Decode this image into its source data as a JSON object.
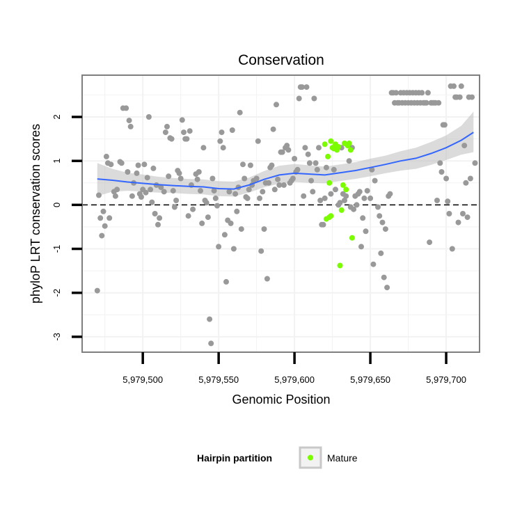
{
  "chart_data": {
    "type": "scatter",
    "title": "Conservation",
    "xlabel": "Genomic Position",
    "ylabel": "phyloP LRT conservation scores",
    "xlim": [
      5979460,
      5979722
    ],
    "ylim": [
      -3.35,
      2.95
    ],
    "xticks": [
      5979500,
      5979550,
      5979600,
      5979650,
      5979700
    ],
    "xtick_labels": [
      "5,979,500",
      "5,979,550",
      "5,979,600",
      "5,979,650",
      "5,979,700"
    ],
    "yticks": [
      -3,
      -2,
      -1,
      0,
      1,
      2
    ],
    "ytick_labels": [
      "-3",
      "-2",
      "-1",
      "0",
      "1",
      "2"
    ],
    "grid": true,
    "reference_line": {
      "y": 0,
      "style": "dashed",
      "color": "#000000"
    },
    "colors": {
      "background_points": "#999999",
      "mature_points": "#7CFC00",
      "smooth_line": "#3366FF",
      "confidence_band": "#BEBEBE",
      "grid": "#F2F2F2",
      "panel_border": "#7F7F7F"
    },
    "series": [
      {
        "role": "background",
        "points": [
          [
            5979470,
            -1.95
          ],
          [
            5979471,
            0.22
          ],
          [
            5979472,
            -0.3
          ],
          [
            5979473,
            -0.7
          ],
          [
            5979474,
            -0.15
          ],
          [
            5979475,
            -0.48
          ],
          [
            5979476,
            1.1
          ],
          [
            5979477,
            0.95
          ],
          [
            5979478,
            -0.3
          ],
          [
            5979479,
            0.92
          ],
          [
            5979481,
            0.3
          ],
          [
            5979482,
            0.2
          ],
          [
            5979483,
            0.35
          ],
          [
            5979485,
            0.98
          ],
          [
            5979486,
            0.95
          ],
          [
            5979487,
            2.2
          ],
          [
            5979489,
            2.2
          ],
          [
            5979490,
            0.75
          ],
          [
            5979491,
            1.92
          ],
          [
            5979492,
            1.78
          ],
          [
            5979493,
            0.2
          ],
          [
            5979494,
            0.5
          ],
          [
            5979496,
            0.72
          ],
          [
            5979497,
            0.9
          ],
          [
            5979498,
            0.25
          ],
          [
            5979499,
            0.18
          ],
          [
            5979500,
            0.35
          ],
          [
            5979501,
            0.92
          ],
          [
            5979502,
            0.28
          ],
          [
            5979503,
            0.62
          ],
          [
            5979504,
            2.0
          ],
          [
            5979505,
            0.35
          ],
          [
            5979506,
            0.06
          ],
          [
            5979507,
            0.83
          ],
          [
            5979508,
            -0.2
          ],
          [
            5979509,
            0.45
          ],
          [
            5979510,
            -0.45
          ],
          [
            5979511,
            -0.3
          ],
          [
            5979512,
            0.4
          ],
          [
            5979514,
            0.3
          ],
          [
            5979515,
            1.65
          ],
          [
            5979516,
            1.78
          ],
          [
            5979517,
            0.65
          ],
          [
            5979518,
            1.52
          ],
          [
            5979519,
            1.5
          ],
          [
            5979520,
            0.32
          ],
          [
            5979521,
            -0.05
          ],
          [
            5979522,
            0.1
          ],
          [
            5979523,
            0.78
          ],
          [
            5979524,
            0.72
          ],
          [
            5979525,
            0.6
          ],
          [
            5979526,
            1.93
          ],
          [
            5979527,
            1.65
          ],
          [
            5979528,
            1.5
          ],
          [
            5979529,
            1.5
          ],
          [
            5979530,
            -0.25
          ],
          [
            5979531,
            1.68
          ],
          [
            5979532,
            0.45
          ],
          [
            5979533,
            -0.1
          ],
          [
            5979535,
            0.7
          ],
          [
            5979536,
            0.58
          ],
          [
            5979537,
            0.75
          ],
          [
            5979538,
            0.32
          ],
          [
            5979539,
            -0.42
          ],
          [
            5979540,
            1.3
          ],
          [
            5979541,
            0.1
          ],
          [
            5979542,
            0.05
          ],
          [
            5979543,
            -0.28
          ],
          [
            5979544,
            -2.6
          ],
          [
            5979545,
            -3.15
          ],
          [
            5979546,
            0.6
          ],
          [
            5979547,
            0.32
          ],
          [
            5979548,
            0.15
          ],
          [
            5979549,
            -0.02
          ],
          [
            5979550,
            -0.95
          ],
          [
            5979551,
            1.45
          ],
          [
            5979552,
            1.65
          ],
          [
            5979553,
            1.3
          ],
          [
            5979554,
            -0.68
          ],
          [
            5979555,
            -1.75
          ],
          [
            5979556,
            -0.35
          ],
          [
            5979557,
            0.3
          ],
          [
            5979558,
            -0.42
          ],
          [
            5979559,
            1.7
          ],
          [
            5979560,
            -1.0
          ],
          [
            5979561,
            0.25
          ],
          [
            5979562,
            -0.15
          ],
          [
            5979563,
            0.4
          ],
          [
            5979564,
            2.1
          ],
          [
            5979565,
            -0.55
          ],
          [
            5979566,
            0.92
          ],
          [
            5979567,
            0.6
          ],
          [
            5979568,
            0.18
          ],
          [
            5979569,
            0.15
          ],
          [
            5979570,
            0.35
          ],
          [
            5979571,
            0.9
          ],
          [
            5979572,
            0.45
          ],
          [
            5979573,
            0.55
          ],
          [
            5979575,
            0.6
          ],
          [
            5979576,
            1.45
          ],
          [
            5979577,
            0.15
          ],
          [
            5979578,
            -1.05
          ],
          [
            5979579,
            0.3
          ],
          [
            5979580,
            -0.55
          ],
          [
            5979581,
            0.5
          ],
          [
            5979582,
            -1.68
          ],
          [
            5979583,
            0.5
          ],
          [
            5979584,
            0.85
          ],
          [
            5979585,
            0.9
          ],
          [
            5979586,
            1.72
          ],
          [
            5979587,
            0.35
          ],
          [
            5979588,
            2.28
          ],
          [
            5979589,
            0.58
          ],
          [
            5979590,
            0.45
          ],
          [
            5979591,
            1.2
          ],
          [
            5979592,
            1.2
          ],
          [
            5979593,
            0.45
          ],
          [
            5979594,
            1.3
          ],
          [
            5979595,
            1.35
          ],
          [
            5979596,
            1.25
          ],
          [
            5979597,
            0.5
          ],
          [
            5979598,
            0.55
          ],
          [
            5979599,
            0.6
          ],
          [
            5979600,
            1.05
          ],
          [
            5979601,
            0.75
          ],
          [
            5979602,
            0.8
          ],
          [
            5979603,
            2.42
          ],
          [
            5979604,
            2.68
          ],
          [
            5979605,
            2.68
          ],
          [
            5979606,
            0.2
          ],
          [
            5979607,
            1.3
          ],
          [
            5979608,
            2.68
          ],
          [
            5979609,
            1.15
          ],
          [
            5979610,
            0.95
          ],
          [
            5979611,
            0.55
          ],
          [
            5979612,
            0.3
          ],
          [
            5979613,
            2.42
          ],
          [
            5979614,
            0.95
          ],
          [
            5979615,
            0.8
          ],
          [
            5979616,
            1.3
          ],
          [
            5979617,
            0.1
          ],
          [
            5979618,
            -0.45
          ],
          [
            5979619,
            -0.45
          ],
          [
            5979620,
            0.15
          ],
          [
            5979621,
            0.85
          ],
          [
            5979624,
            0.25
          ],
          [
            5979626,
            0.8
          ],
          [
            5979627,
            0.35
          ],
          [
            5979629,
            0.0
          ],
          [
            5979630,
            0.05
          ],
          [
            5979631,
            1.3
          ],
          [
            5979632,
            0.25
          ],
          [
            5979633,
            0.1
          ],
          [
            5979634,
            0.2
          ],
          [
            5979636,
            1.0
          ],
          [
            5979637,
            -0.05
          ],
          [
            5979638,
            1.3
          ],
          [
            5979639,
            -0.1
          ],
          [
            5979640,
            0.2
          ],
          [
            5979641,
            0.0
          ],
          [
            5979642,
            0.25
          ],
          [
            5979643,
            0.3
          ],
          [
            5979644,
            -0.95
          ],
          [
            5979645,
            -0.3
          ],
          [
            5979646,
            0.15
          ],
          [
            5979647,
            -0.6
          ],
          [
            5979648,
            0.32
          ],
          [
            5979650,
            0.15
          ],
          [
            5979651,
            0.8
          ],
          [
            5979652,
            -1.35
          ],
          [
            5979653,
            0.55
          ],
          [
            5979655,
            -0.05
          ],
          [
            5979656,
            -0.25
          ],
          [
            5979657,
            -1.1
          ],
          [
            5979658,
            -0.4
          ],
          [
            5979659,
            -1.65
          ],
          [
            5979660,
            -0.55
          ],
          [
            5979661,
            -1.88
          ],
          [
            5979662,
            0.2
          ],
          [
            5979663,
            0.25
          ],
          [
            5979664,
            2.55
          ],
          [
            5979665,
            2.55
          ],
          [
            5979666,
            2.32
          ],
          [
            5979667,
            2.55
          ],
          [
            5979668,
            2.32
          ],
          [
            5979669,
            2.32
          ],
          [
            5979670,
            2.55
          ],
          [
            5979671,
            2.32
          ],
          [
            5979672,
            2.55
          ],
          [
            5979673,
            2.32
          ],
          [
            5979674,
            2.55
          ],
          [
            5979675,
            2.32
          ],
          [
            5979676,
            2.55
          ],
          [
            5979677,
            2.32
          ],
          [
            5979678,
            2.55
          ],
          [
            5979679,
            2.32
          ],
          [
            5979680,
            2.55
          ],
          [
            5979681,
            2.32
          ],
          [
            5979682,
            2.55
          ],
          [
            5979683,
            2.32
          ],
          [
            5979684,
            2.55
          ],
          [
            5979685,
            2.32
          ],
          [
            5979686,
            2.32
          ],
          [
            5979687,
            2.32
          ],
          [
            5979688,
            2.55
          ],
          [
            5979689,
            -0.85
          ],
          [
            5979690,
            2.32
          ],
          [
            5979691,
            2.32
          ],
          [
            5979692,
            2.32
          ],
          [
            5979693,
            2.32
          ],
          [
            5979694,
            0.1
          ],
          [
            5979695,
            2.32
          ],
          [
            5979696,
            0.95
          ],
          [
            5979697,
            0.75
          ],
          [
            5979698,
            1.82
          ],
          [
            5979699,
            1.82
          ],
          [
            5979700,
            0.6
          ],
          [
            5979701,
            0.08
          ],
          [
            5979702,
            -0.2
          ],
          [
            5979703,
            2.7
          ],
          [
            5979704,
            -1.0
          ],
          [
            5979705,
            2.7
          ],
          [
            5979706,
            2.45
          ],
          [
            5979707,
            2.45
          ],
          [
            5979708,
            -0.4
          ],
          [
            5979709,
            2.45
          ],
          [
            5979710,
            2.7
          ],
          [
            5979711,
            -0.2
          ],
          [
            5979712,
            1.35
          ],
          [
            5979713,
            0.5
          ],
          [
            5979714,
            -0.28
          ],
          [
            5979715,
            2.45
          ],
          [
            5979716,
            0.6
          ],
          [
            5979717,
            2.45
          ],
          [
            5979719,
            0.95
          ]
        ]
      },
      {
        "name": "Mature",
        "role": "mature",
        "points": [
          [
            5979620,
            1.38
          ],
          [
            5979621,
            -0.32
          ],
          [
            5979622,
            1.1
          ],
          [
            5979623,
            0.5
          ],
          [
            5979623,
            -0.28
          ],
          [
            5979624,
            -0.25
          ],
          [
            5979624,
            1.45
          ],
          [
            5979625,
            1.3
          ],
          [
            5979626,
            1.28
          ],
          [
            5979627,
            1.38
          ],
          [
            5979628,
            1.25
          ],
          [
            5979629,
            1.32
          ],
          [
            5979630,
            -1.38
          ],
          [
            5979631,
            -0.12
          ],
          [
            5979632,
            0.45
          ],
          [
            5979633,
            1.4
          ],
          [
            5979634,
            0.35
          ],
          [
            5979635,
            1.35
          ],
          [
            5979636,
            1.4
          ],
          [
            5979637,
            1.25
          ],
          [
            5979638,
            -0.75
          ]
        ]
      }
    ],
    "smooth": {
      "x": [
        5979470,
        5979480,
        5979490,
        5979500,
        5979510,
        5979520,
        5979530,
        5979540,
        5979550,
        5979560,
        5979570,
        5979580,
        5979590,
        5979600,
        5979610,
        5979620,
        5979630,
        5979640,
        5979650,
        5979660,
        5979670,
        5979680,
        5979690,
        5979700,
        5979710,
        5979718
      ],
      "y": [
        0.59,
        0.56,
        0.52,
        0.49,
        0.46,
        0.44,
        0.42,
        0.41,
        0.37,
        0.36,
        0.45,
        0.58,
        0.68,
        0.72,
        0.7,
        0.68,
        0.73,
        0.78,
        0.85,
        0.92,
        1.0,
        1.06,
        1.17,
        1.3,
        1.47,
        1.65
      ],
      "upper": [
        0.95,
        0.82,
        0.73,
        0.69,
        0.64,
        0.61,
        0.59,
        0.58,
        0.54,
        0.53,
        0.62,
        0.77,
        0.89,
        0.93,
        0.9,
        0.87,
        0.92,
        0.97,
        1.05,
        1.12,
        1.22,
        1.3,
        1.43,
        1.58,
        1.8,
        2.12
      ],
      "lower": [
        0.2,
        0.3,
        0.32,
        0.3,
        0.28,
        0.27,
        0.25,
        0.24,
        0.2,
        0.19,
        0.28,
        0.4,
        0.48,
        0.52,
        0.5,
        0.49,
        0.54,
        0.59,
        0.65,
        0.72,
        0.78,
        0.82,
        0.91,
        1.02,
        1.14,
        1.2
      ]
    },
    "legend": {
      "title": "Hairpin partition",
      "entries": [
        {
          "label": "Mature",
          "color": "#7CFC00"
        }
      ],
      "placement": "bottom"
    }
  }
}
